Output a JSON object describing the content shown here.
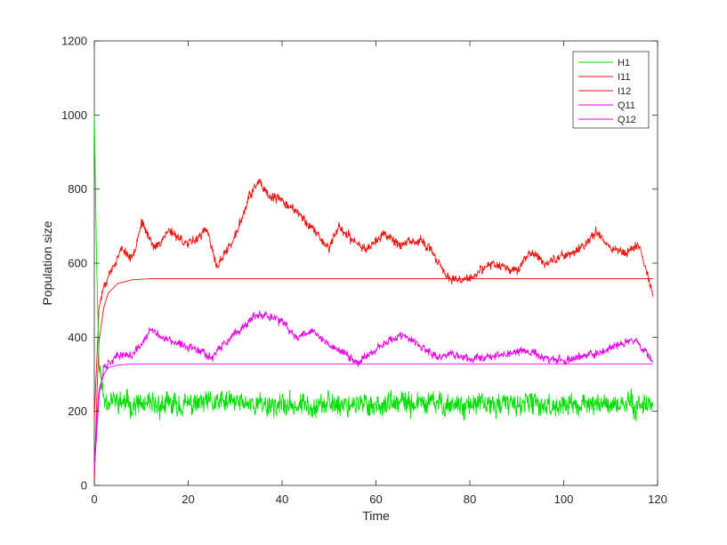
{
  "chart_data": {
    "type": "line",
    "title": "",
    "xlabel": "Time",
    "ylabel": "Population size",
    "xlim": [
      0,
      120
    ],
    "ylim": [
      0,
      1200
    ],
    "xticks": [
      "0",
      "20",
      "40",
      "60",
      "80",
      "100",
      "120"
    ],
    "yticks": [
      "0",
      "200",
      "400",
      "600",
      "800",
      "1000",
      "1200"
    ],
    "grid": false,
    "legend_position": "top-right",
    "colors": {
      "green": "#00dd00",
      "red": "#e8140e",
      "magenta": "#e600e6",
      "axis": "#262626"
    },
    "series": [
      {
        "name": "H1",
        "color": "#00dd00",
        "noise": 22,
        "seed": 11,
        "x": [
          0,
          0.5,
          1,
          2,
          10,
          20,
          30,
          40,
          50,
          60,
          70,
          80,
          90,
          100,
          110,
          119
        ],
        "y": [
          1000,
          600,
          330,
          235,
          215,
          218,
          225,
          215,
          220,
          218,
          222,
          216,
          220,
          215,
          218,
          220
        ]
      },
      {
        "name": "I11",
        "color": "#e8140e",
        "noise": 0,
        "seed": 0,
        "x": [
          0,
          0.5,
          1,
          2,
          3,
          5,
          8,
          12,
          20,
          40,
          60,
          80,
          100,
          119
        ],
        "y": [
          0,
          230,
          390,
          480,
          520,
          545,
          555,
          558,
          558,
          558,
          558,
          558,
          558,
          558
        ]
      },
      {
        "name": "I12",
        "color": "#e8140e",
        "noise": 9,
        "seed": 23,
        "x": [
          0,
          1,
          2,
          4,
          6,
          8,
          10,
          13,
          16,
          20,
          24,
          26,
          30,
          33,
          35,
          37,
          40,
          43,
          46,
          50,
          52,
          55,
          58,
          62,
          65,
          70,
          73,
          76,
          80,
          85,
          90,
          93,
          96,
          100,
          104,
          107,
          110,
          113,
          116,
          118,
          119
        ],
        "y": [
          180,
          480,
          540,
          590,
          640,
          610,
          710,
          640,
          690,
          650,
          690,
          590,
          670,
          780,
          820,
          780,
          770,
          740,
          700,
          640,
          700,
          660,
          640,
          680,
          650,
          660,
          610,
          550,
          560,
          600,
          580,
          630,
          600,
          620,
          640,
          690,
          640,
          630,
          650,
          560,
          520
        ]
      },
      {
        "name": "Q11",
        "color": "#e600e6",
        "noise": 0,
        "seed": 0,
        "x": [
          0,
          0.5,
          1,
          2,
          3,
          5,
          8,
          12,
          20,
          40,
          60,
          80,
          100,
          119
        ],
        "y": [
          40,
          180,
          260,
          300,
          318,
          325,
          328,
          328,
          328,
          328,
          328,
          328,
          328,
          328
        ]
      },
      {
        "name": "Q12",
        "color": "#e600e6",
        "noise": 8,
        "seed": 37,
        "x": [
          0,
          1,
          2,
          4,
          6,
          8,
          10,
          12,
          15,
          18,
          22,
          25,
          28,
          31,
          34,
          37,
          40,
          43,
          46,
          50,
          53,
          56,
          60,
          63,
          66,
          70,
          73,
          76,
          80,
          84,
          88,
          92,
          96,
          100,
          104,
          108,
          112,
          115,
          117,
          119
        ],
        "y": [
          40,
          240,
          320,
          340,
          355,
          350,
          380,
          420,
          395,
          380,
          370,
          345,
          385,
          420,
          455,
          460,
          440,
          400,
          420,
          380,
          360,
          330,
          370,
          395,
          405,
          370,
          345,
          355,
          340,
          350,
          355,
          365,
          345,
          335,
          350,
          360,
          380,
          395,
          370,
          330
        ]
      }
    ]
  }
}
